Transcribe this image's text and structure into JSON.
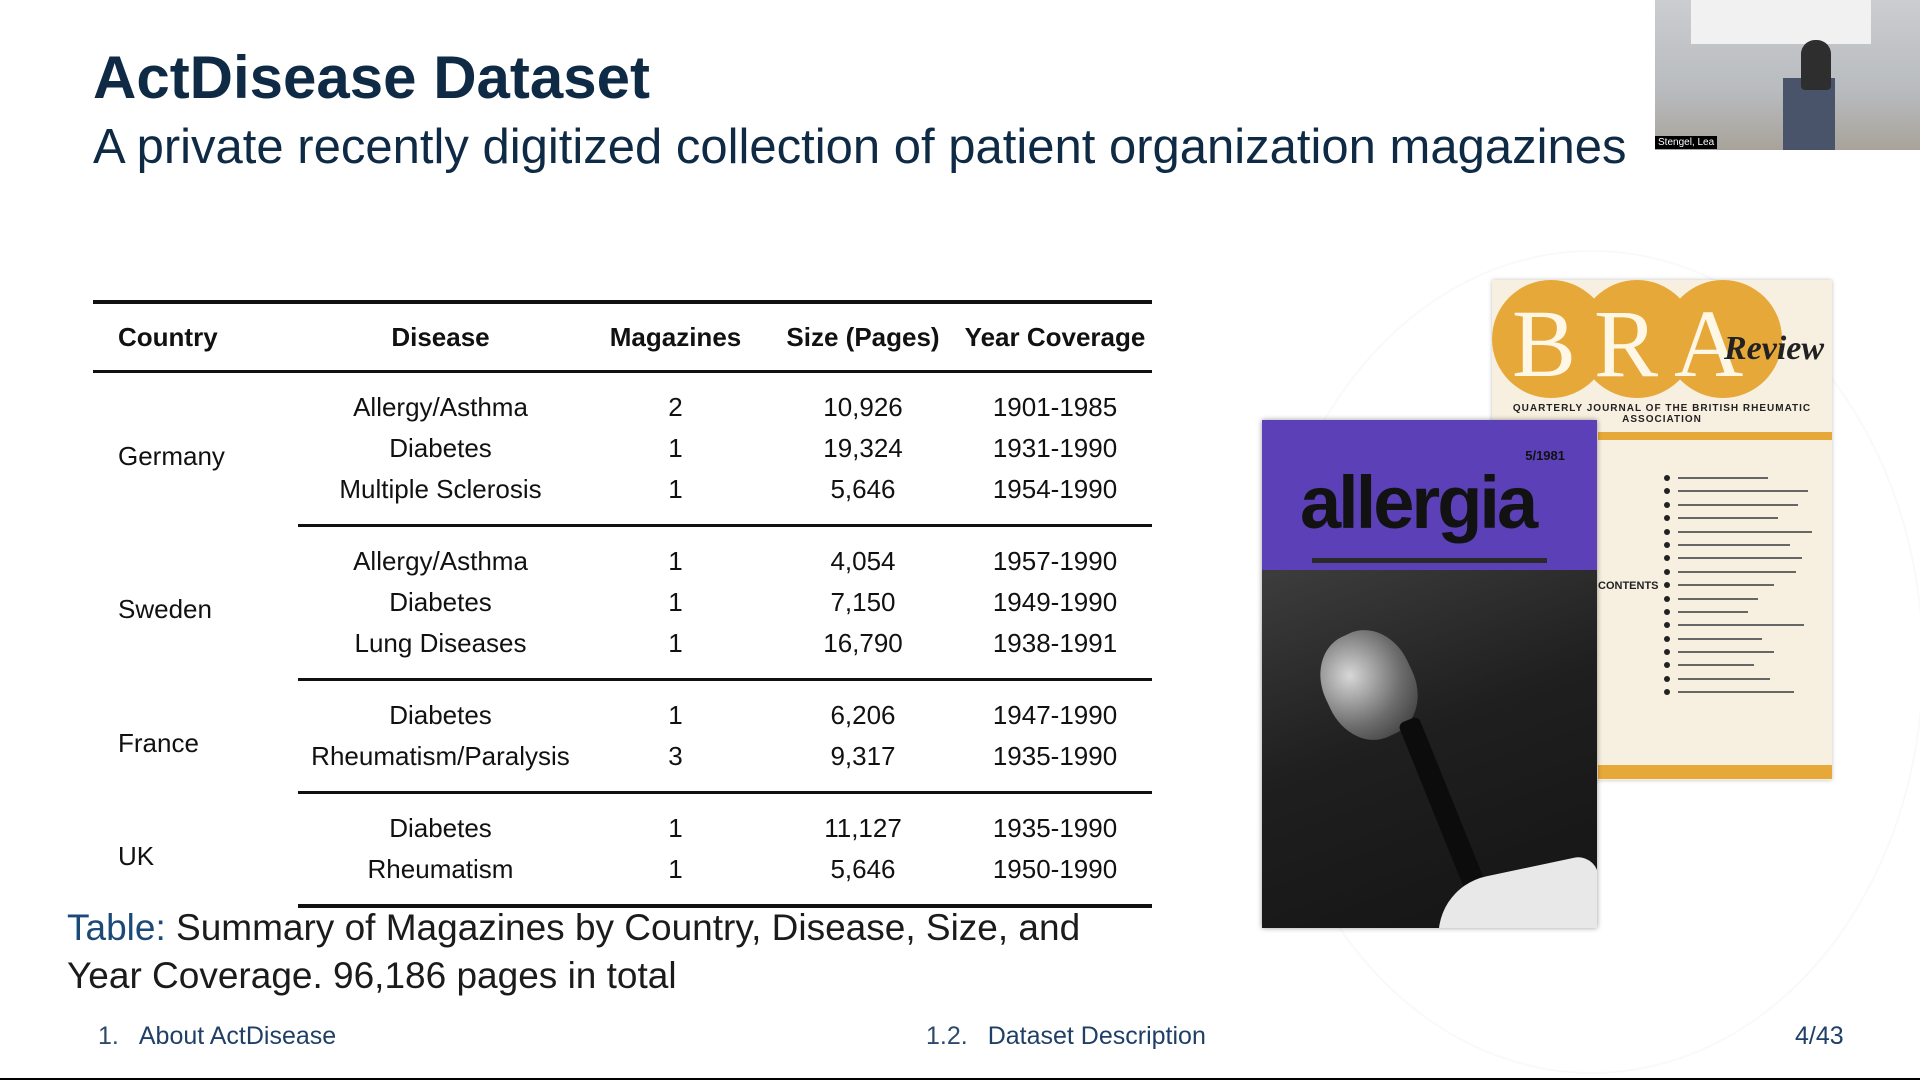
{
  "slide": {
    "title": "ActDisease Dataset",
    "subtitle": "A private recently digitized collection of patient organization magazines"
  },
  "table": {
    "headers": [
      "Country",
      "Disease",
      "Magazines",
      "Size (Pages)",
      "Year Coverage"
    ],
    "groups": [
      {
        "country": "Germany",
        "rows": [
          {
            "disease": "Allergy/Asthma",
            "magazines": "2",
            "size": "10,926",
            "years": "1901-1985"
          },
          {
            "disease": "Diabetes",
            "magazines": "1",
            "size": "19,324",
            "years": "1931-1990"
          },
          {
            "disease": "Multiple Sclerosis",
            "magazines": "1",
            "size": "5,646",
            "years": "1954-1990"
          }
        ]
      },
      {
        "country": "Sweden",
        "rows": [
          {
            "disease": "Allergy/Asthma",
            "magazines": "1",
            "size": "4,054",
            "years": "1957-1990"
          },
          {
            "disease": "Diabetes",
            "magazines": "1",
            "size": "7,150",
            "years": "1949-1990"
          },
          {
            "disease": "Lung Diseases",
            "magazines": "1",
            "size": "16,790",
            "years": "1938-1991"
          }
        ]
      },
      {
        "country": "France",
        "rows": [
          {
            "disease": "Diabetes",
            "magazines": "1",
            "size": "6,206",
            "years": "1947-1990"
          },
          {
            "disease": "Rheumatism/Paralysis",
            "magazines": "3",
            "size": "9,317",
            "years": "1935-1990"
          }
        ]
      },
      {
        "country": "UK",
        "rows": [
          {
            "disease": "Diabetes",
            "magazines": "1",
            "size": "11,127",
            "years": "1935-1990"
          },
          {
            "disease": "Rheumatism",
            "magazines": "1",
            "size": "5,646",
            "years": "1950-1990"
          }
        ]
      }
    ]
  },
  "caption": {
    "label": "Table:",
    "text": " Summary of Magazines by Country, Disease, Size, and Year Coverage. 96,186 pages in total"
  },
  "footer": {
    "section_num": "1.",
    "section": "About ActDisease",
    "subsection_num": "1.2.",
    "subsection": "Dataset Description",
    "page": "4/43"
  },
  "images": {
    "bra": {
      "letters": [
        "B",
        "R",
        "A"
      ],
      "review": "Review",
      "subtitle": "QUARTERLY JOURNAL OF THE BRITISH RHEUMATIC ASSOCIATION",
      "contents": "CONTENTS"
    },
    "allergia": {
      "name": "allergia",
      "issue": "5/1981"
    }
  },
  "webcam": {
    "label": "Stengel, Lea"
  },
  "colors": {
    "title": "#0f2a45",
    "caption_label": "#1b4a78",
    "footer": "#1f3f66",
    "bra_orange": "#e7a83a",
    "allergia_purple": "#5b40b8"
  }
}
